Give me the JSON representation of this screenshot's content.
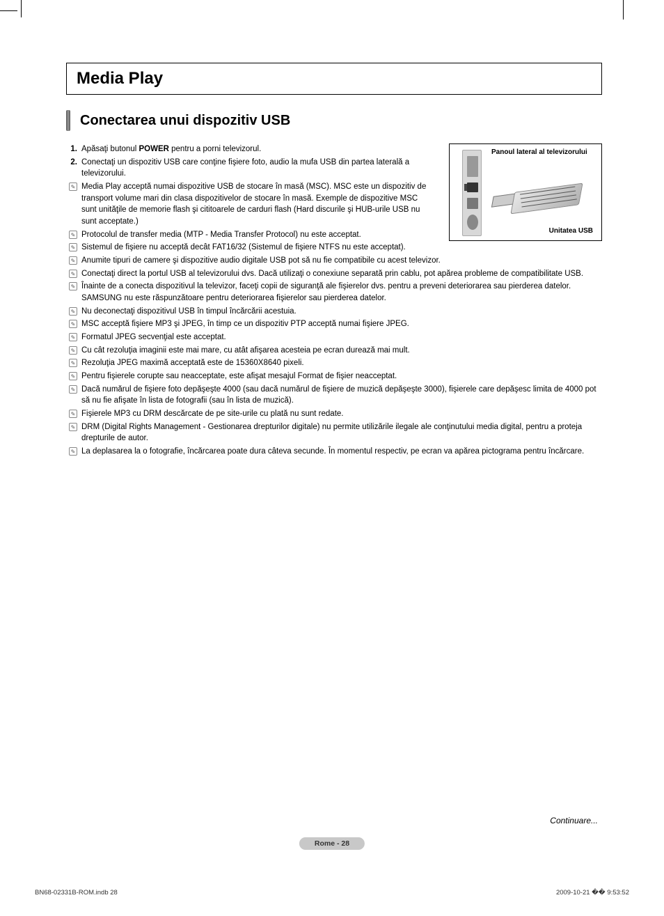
{
  "title": "Media Play",
  "section_title": "Conectarea unui dispozitiv USB",
  "diagram": {
    "top_label": "Panoul lateral al televizorului",
    "bottom_label": "Unitatea USB"
  },
  "steps": [
    {
      "marker": "1.",
      "text_pre": "Apăsaţi butonul ",
      "bold": "POWER",
      "text_post": " pentru a porni televizorul."
    },
    {
      "marker": "2.",
      "text_pre": "Conectaţi un dispozitiv USB care conţine fişiere foto, audio la mufa USB din partea laterală a televizorului.",
      "bold": "",
      "text_post": ""
    }
  ],
  "notes": [
    "Media Play acceptă numai dispozitive USB de stocare în masă (MSC). MSC este un dispozitiv de transport volume mari din clasa dispozitivelor de stocare în masă. Exemple de dispozitive MSC sunt unităţile de memorie flash şi cititoarele de carduri flash (Hard discurile şi HUB-urile USB nu sunt acceptate.)",
    "Protocolul de transfer media (MTP - Media Transfer Protocol) nu este acceptat.",
    "Sistemul de fişiere nu acceptă decât FAT16/32 (Sistemul de fişiere NTFS nu este acceptat).",
    "Anumite tipuri de camere şi dispozitive audio digitale USB pot să nu fie compatibile cu acest televizor.",
    "Conectaţi direct la portul USB al televizorului dvs. Dacă utilizaţi o conexiune separată prin cablu, pot apărea probleme de compatibilitate USB.",
    "Înainte de a conecta dispozitivul la televizor, faceţi copii de siguranţă ale fişierelor dvs. pentru a preveni deteriorarea sau pierderea datelor. SAMSUNG nu este răspunzătoare pentru deteriorarea fişierelor sau pierderea datelor.",
    "Nu deconectaţi dispozitivul USB în timpul încărcării acestuia.",
    "MSC acceptă fişiere MP3 şi JPEG, în timp ce un dispozitiv PTP acceptă numai fişiere JPEG.",
    "Formatul JPEG secvenţial este acceptat.",
    "Cu cât rezoluţia imaginii este mai mare, cu atât afişarea acesteia pe ecran durează mai mult.",
    "Rezoluţia JPEG maximă acceptată este de 15360X8640 pixeli.",
    "Pentru fişierele corupte sau neacceptate, este afişat mesajul Format de fişier neacceptat.",
    "Dacă numărul de fişiere foto depăşeşte 4000 (sau dacă numărul de fişiere de muzică depăşeşte 3000), fişierele care depăşesc limita de 4000 pot să nu fie afişate în lista de fotografii (sau în lista de muzică).",
    "Fişierele MP3 cu DRM descărcate de pe site-urile cu plată nu sunt redate.",
    "DRM (Digital Rights Management - Gestionarea drepturilor digitale) nu permite utilizările ilegale ale conţinutului media digital, pentru a proteja drepturile de autor.",
    "La deplasarea la o fotografie, încărcarea poate dura câteva secunde. În momentul respectiv, pe ecran va apărea pictograma pentru încărcare."
  ],
  "continue_text": "Continuare...",
  "page_footer": "Rome - 28",
  "doc_footer_left": "BN68-02331B-ROM.indb   28",
  "doc_footer_right": "2009-10-21   �� 9:53:52",
  "constrained_rows": 4
}
